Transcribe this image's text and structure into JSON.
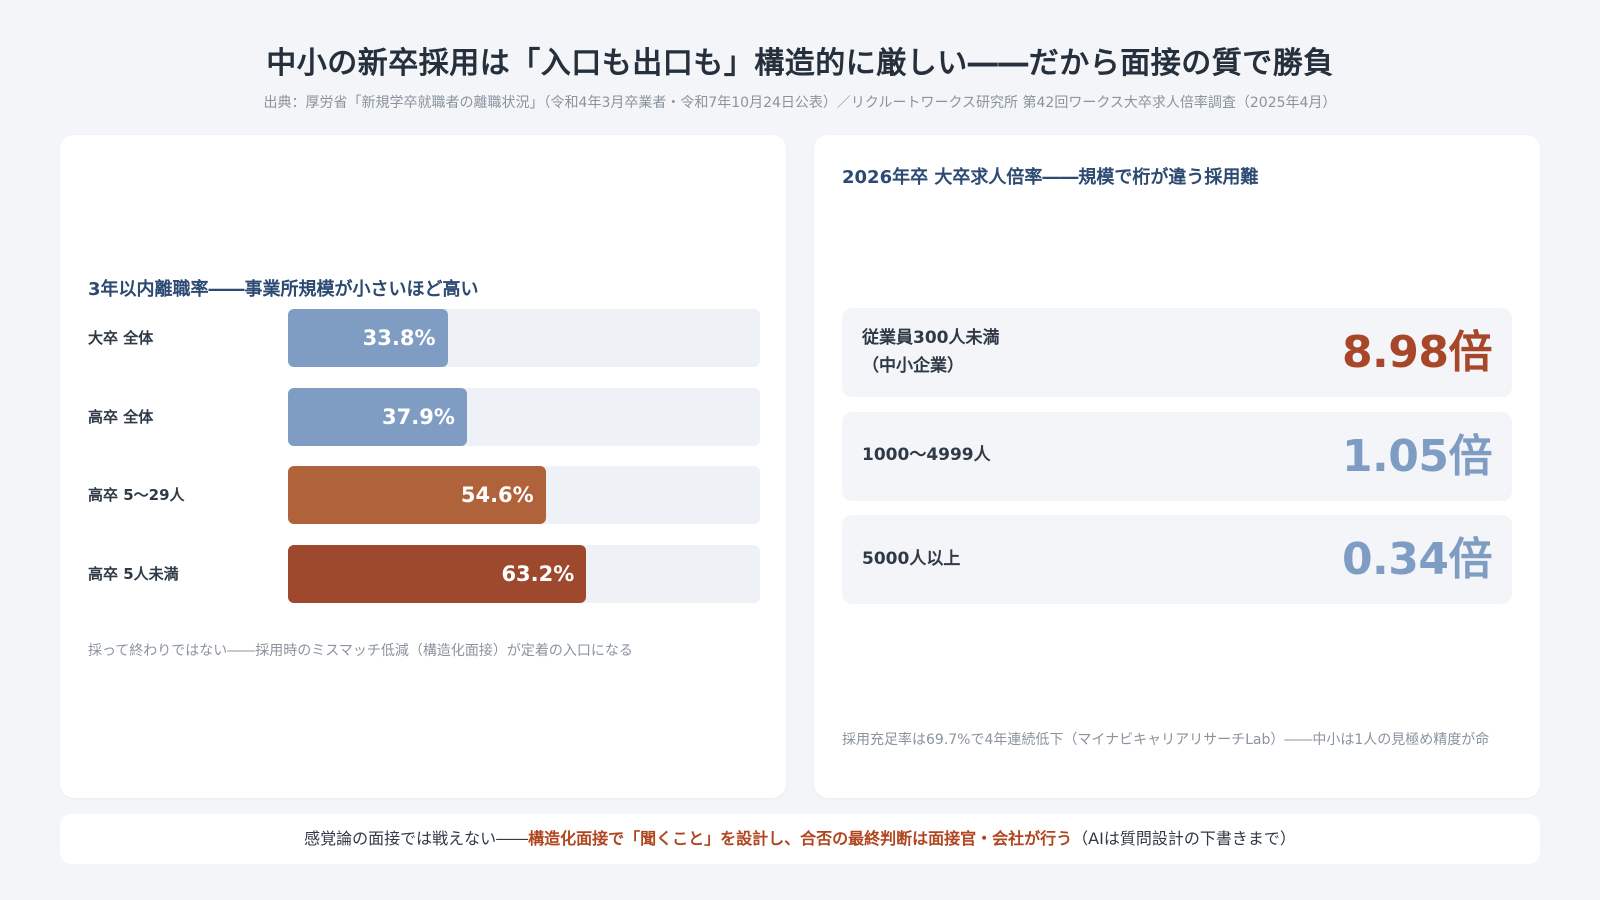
{
  "header": {
    "title": "中小の新卒採用は「入口も出口も」構造的に厳しい――だから面接の質で勝負",
    "source": "出典：厚労省「新規学卒就職者の離職状況」（令和4年3月卒業者・令和7年10月24日公表）／リクルートワークス研究所 第42回ワークス大卒求人倍率調査（2025年4月）"
  },
  "chart_data": [
    {
      "type": "bar",
      "orientation": "horizontal",
      "title": "3年以内離職率――事業所規模が小さいほど高い",
      "categories": [
        "大卒 全体",
        "高卒 全体",
        "高卒 5〜29人",
        "高卒 5人未満"
      ],
      "values": [
        33.8,
        37.9,
        54.6,
        63.2
      ],
      "value_labels": [
        "33.8%",
        "37.9%",
        "54.6%",
        "63.2%"
      ],
      "colors": [
        "#7f9cc3",
        "#7f9cc3",
        "#b0633a",
        "#9e482d"
      ],
      "xlim": [
        0,
        100
      ],
      "note": "採って終わりではない――採用時のミスマッチ低減（構造化面接）が定着の入口になる"
    },
    {
      "type": "table",
      "title": "2026年卒 大卒求人倍率――規模で桁が違う採用難",
      "categories": [
        "従業員300人未満\n（中小企業）",
        "1000〜4999人",
        "5000人以上"
      ],
      "values": [
        8.98,
        1.05,
        0.34
      ],
      "value_labels": [
        "8.98倍",
        "1.05倍",
        "0.34倍"
      ],
      "colors": [
        "#a8462a",
        "#7f9cc3",
        "#7f9cc3"
      ],
      "note": "採用充足率は69.7%で4年連続低下（マイナビキャリアリサーチLab）――中小は1人の見極め精度が命"
    }
  ],
  "footer": {
    "lead": "感覚論の面接では戦えない――",
    "highlight": "構造化面接で「聞くこと」を設計し、合否の最終判断は面接官・会社が行う",
    "tail": "（AIは質問設計の下書きまで）"
  }
}
